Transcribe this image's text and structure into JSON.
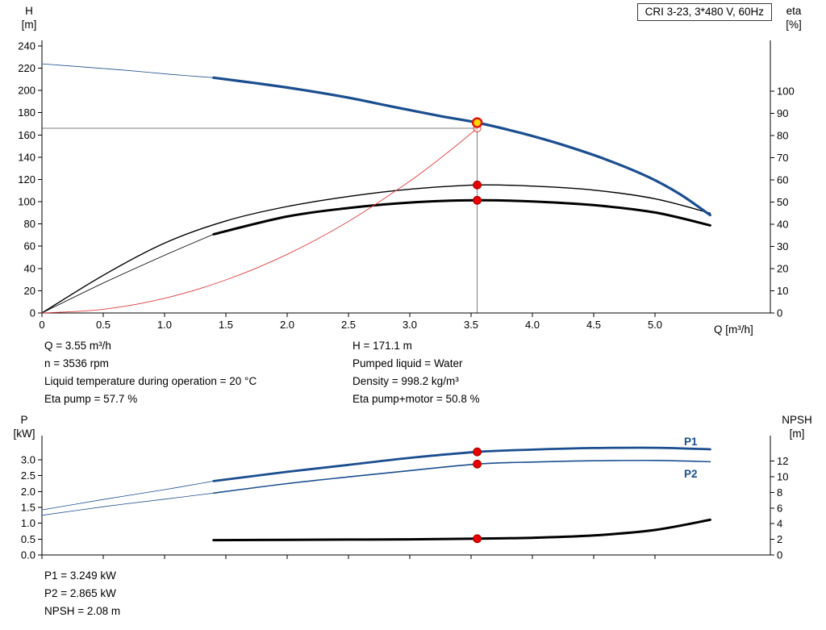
{
  "colors": {
    "curve_blue": "#1b4e8f",
    "curve_black": "#000000",
    "curve_red": "#e04040",
    "guide_gray": "#7d7d7d",
    "dot_red": "#e60000",
    "dot_edge": "#990000",
    "duty_fill": "#ffd400",
    "duty_ring": "#dd1111",
    "label_blue": "#1b4e8f"
  },
  "chart_data": [
    {
      "type": "line",
      "title": "CRI 3-23, 3*480 V, 60Hz",
      "left_axis": {
        "label": "H",
        "unit": "[m]",
        "min": 0,
        "max": 240,
        "values": [
          0,
          20,
          40,
          60,
          80,
          100,
          120,
          140,
          160,
          180,
          200,
          220,
          240
        ],
        "labels": [
          "0",
          "20",
          "40",
          "60",
          "80",
          "100",
          "120",
          "140",
          "160",
          "180",
          "200",
          "220",
          "240"
        ]
      },
      "right_axis": {
        "label": "eta",
        "unit": "[%]",
        "min": 0,
        "max": 100,
        "values": [
          0,
          10,
          20,
          30,
          40,
          50,
          60,
          70,
          80,
          90,
          100
        ],
        "labels": [
          "0",
          "10",
          "20",
          "30",
          "40",
          "50",
          "60",
          "70",
          "80",
          "90",
          "100"
        ]
      },
      "x_axis": {
        "label": "Q [m³/h]",
        "min": 0,
        "max": 5.94,
        "values": [
          0,
          0.5,
          1.0,
          1.5,
          2.0,
          2.5,
          3.0,
          3.5,
          4.0,
          4.5,
          5.0
        ],
        "labels": [
          "0",
          "0.5",
          "1.0",
          "1.5",
          "2.0",
          "2.5",
          "3.0",
          "3.5",
          "4.0",
          "4.5",
          "5.0"
        ]
      },
      "series": [
        {
          "id": "eta-pump-curve",
          "axis": "right",
          "color": "curve_black",
          "width": 1.4,
          "q": [
            0,
            0.5,
            1.0,
            1.5,
            2.0,
            2.5,
            3.0,
            3.55,
            4.0,
            4.5,
            5.0,
            5.45
          ],
          "v": [
            0,
            17,
            31.5,
            41.5,
            48,
            52.5,
            55.8,
            57.7,
            57.2,
            55.4,
            51.5,
            45
          ]
        },
        {
          "id": "eta-pump-motor-extension",
          "axis": "right",
          "color": "curve_black",
          "width": 0.8,
          "q": [
            0,
            0.5,
            1.0,
            1.4
          ],
          "v": [
            0,
            13.5,
            26,
            35.5
          ]
        },
        {
          "id": "eta-pump-motor-curve",
          "axis": "right",
          "color": "curve_black",
          "width": 3,
          "q": [
            1.4,
            2.0,
            2.5,
            3.0,
            3.55,
            4.0,
            4.5,
            5.0,
            5.45
          ],
          "v": [
            35.5,
            43.5,
            47.3,
            49.8,
            50.8,
            50.3,
            48.6,
            45.3,
            39.5
          ]
        },
        {
          "id": "system-resistance-curve",
          "axis": "left",
          "color": "curve_red",
          "width": 0.9,
          "q": [
            0,
            0.5,
            1.0,
            1.5,
            2.0,
            2.5,
            3.0,
            3.3,
            3.55
          ],
          "v": [
            0,
            3.3,
            13.2,
            29.7,
            52.7,
            82.3,
            118.5,
            143.5,
            166
          ]
        },
        {
          "id": "hq-curve-extension",
          "axis": "left",
          "color": "curve_blue",
          "width": 0.8,
          "q": [
            0,
            0.35,
            0.7,
            1.05,
            1.4
          ],
          "v": [
            224,
            221,
            218,
            214.5,
            211.5
          ]
        },
        {
          "id": "hq-curve",
          "axis": "left",
          "color": "curve_blue",
          "width": 3.2,
          "q": [
            1.4,
            1.75,
            2.1,
            2.5,
            2.9,
            3.25,
            3.55,
            3.9,
            4.25,
            4.6,
            4.95,
            5.2,
            5.45
          ],
          "v": [
            211.5,
            206.5,
            201,
            193.5,
            184.5,
            177,
            171.1,
            162,
            151,
            138,
            122,
            107,
            88
          ]
        }
      ],
      "guide_lines": [
        {
          "dir": "h",
          "axis": "left",
          "v": 166,
          "q1": 0,
          "q2": 3.55,
          "color": "guide_gray",
          "width": 0.9
        },
        {
          "dir": "v",
          "axis": "left",
          "q": 3.55,
          "v1": 0,
          "v2": 171.1,
          "color": "guide_gray",
          "width": 1
        }
      ],
      "markers": [
        {
          "q": 3.55,
          "v": 166,
          "axis": "left",
          "style": "open"
        },
        {
          "q": 3.55,
          "v": 57.7,
          "axis": "right",
          "style": "dot"
        },
        {
          "q": 3.55,
          "v": 50.8,
          "axis": "right",
          "style": "dot"
        },
        {
          "q": 3.55,
          "v": 171.1,
          "axis": "left",
          "style": "duty"
        }
      ]
    },
    {
      "type": "line",
      "title": "",
      "left_axis": {
        "label": "P",
        "unit": "[kW]",
        "min": 0,
        "max": 3.77,
        "values": [
          0,
          0.5,
          1.0,
          1.5,
          2.0,
          2.5,
          3.0
        ],
        "labels": [
          "0.0",
          "0.5",
          "1.0",
          "1.5",
          "2.0",
          "2.5",
          "3.0"
        ]
      },
      "right_axis": {
        "label": "NPSH",
        "unit": "[m]",
        "min": 0,
        "max": 15.3,
        "values": [
          0,
          2,
          4,
          6,
          8,
          10,
          12
        ],
        "labels": [
          "0",
          "2",
          "4",
          "6",
          "8",
          "10",
          "12"
        ]
      },
      "x_axis": {
        "label": "",
        "min": 0,
        "max": 5.94,
        "values": [
          0,
          0.5,
          1.0,
          1.5,
          2.0,
          2.5,
          3.0,
          3.5,
          4.0,
          4.5,
          5.0
        ],
        "labels": []
      },
      "series": [
        {
          "id": "p1-curve-extension",
          "axis": "left",
          "color": "curve_blue",
          "width": 0.8,
          "q": [
            0,
            0.5,
            1.0,
            1.4
          ],
          "v": [
            1.42,
            1.75,
            2.06,
            2.33
          ]
        },
        {
          "id": "p1-curve",
          "axis": "left",
          "color": "curve_blue",
          "width": 2.8,
          "label": "P1",
          "q": [
            1.4,
            2.0,
            2.5,
            3.0,
            3.55,
            4.0,
            4.5,
            5.0,
            5.45
          ],
          "v": [
            2.33,
            2.62,
            2.84,
            3.06,
            3.249,
            3.32,
            3.37,
            3.38,
            3.33
          ]
        },
        {
          "id": "p2-curve-extension",
          "axis": "left",
          "color": "curve_blue",
          "width": 0.8,
          "q": [
            0,
            0.5,
            1.0,
            1.4
          ],
          "v": [
            1.25,
            1.52,
            1.76,
            1.95
          ]
        },
        {
          "id": "p2-curve",
          "axis": "left",
          "color": "curve_blue",
          "width": 1.6,
          "label": "P2",
          "q": [
            1.4,
            2.0,
            2.5,
            3.0,
            3.55,
            4.0,
            4.5,
            5.0,
            5.45
          ],
          "v": [
            1.95,
            2.25,
            2.46,
            2.66,
            2.865,
            2.93,
            2.97,
            2.98,
            2.94
          ]
        },
        {
          "id": "npsh-curve",
          "axis": "right",
          "color": "curve_black",
          "width": 3,
          "q": [
            1.4,
            2.0,
            2.5,
            3.0,
            3.55,
            4.0,
            4.5,
            5.0,
            5.45
          ],
          "v": [
            1.9,
            1.93,
            1.97,
            2.0,
            2.08,
            2.2,
            2.5,
            3.2,
            4.5
          ]
        }
      ],
      "guide_lines": [],
      "markers": [
        {
          "q": 3.55,
          "v": 3.249,
          "axis": "left",
          "style": "dot"
        },
        {
          "q": 3.55,
          "v": 2.865,
          "axis": "left",
          "style": "dot"
        },
        {
          "q": 3.55,
          "v": 2.08,
          "axis": "right",
          "style": "dot"
        }
      ]
    }
  ],
  "annotations": {
    "top_left": [
      "Q = 3.55 m³/h",
      "n = 3536 rpm",
      "Liquid temperature during operation = 20 °C",
      "Eta pump = 57.7 %"
    ],
    "top_right": [
      "H = 171.1 m",
      "Pumped liquid = Water",
      "Density = 998.2 kg/m³",
      "Eta pump+motor = 50.8 %"
    ],
    "bottom": [
      "P1 = 3.249 kW",
      "P2 = 2.865 kW",
      "NPSH = 2.08 m"
    ]
  }
}
